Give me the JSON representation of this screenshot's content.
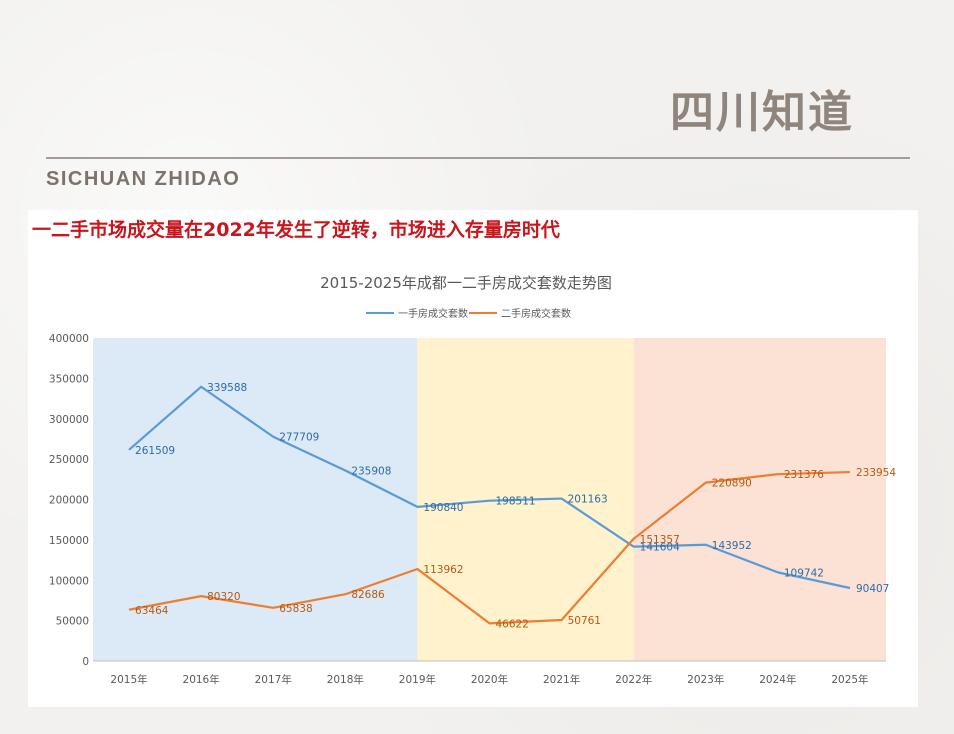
{
  "header": {
    "logo_text": "四川知道",
    "brand_en": "SICHUAN ZHIDAO",
    "headline": "一二手市场成交量在2022年发生了逆转，市场进入存量房时代"
  },
  "colors": {
    "series1": "#5b9bd5",
    "series2": "#ed7d31",
    "label1": "#2e6ca8",
    "label2": "#b55a14",
    "zone1": "#dce9f6",
    "zone2": "#fff2cc",
    "zone3": "#fbe2d5",
    "headline": "#c8161d"
  },
  "chart_data": {
    "type": "line",
    "title": "2015-2025年成都一二手房成交套数走势图",
    "categories": [
      "2015年",
      "2016年",
      "2017年",
      "2018年",
      "2019年",
      "2020年",
      "2021年",
      "2022年",
      "2023年",
      "2024年",
      "2025年"
    ],
    "series": [
      {
        "name": "一手房成交套数",
        "values": [
          261509,
          339588,
          277709,
          235908,
          190840,
          198511,
          201163,
          141604,
          143952,
          109742,
          90407
        ]
      },
      {
        "name": "二手房成交套数",
        "values": [
          63464,
          80320,
          65838,
          82686,
          113962,
          46622,
          50761,
          151357,
          220890,
          231376,
          233954
        ]
      }
    ],
    "ylim": [
      0,
      400000
    ],
    "yticks": [
      "0",
      "50000",
      "100000",
      "150000",
      "200000",
      "250000",
      "300000",
      "350000",
      "400000"
    ],
    "legend": "top",
    "grid": false,
    "background_zones": [
      {
        "from": "2015年",
        "to": "2019年",
        "color": "#dce9f6"
      },
      {
        "from": "2019年",
        "to": "2022年",
        "color": "#fff2cc"
      },
      {
        "from": "2022年",
        "to": "2025年",
        "color": "#fbe2d5"
      }
    ]
  }
}
